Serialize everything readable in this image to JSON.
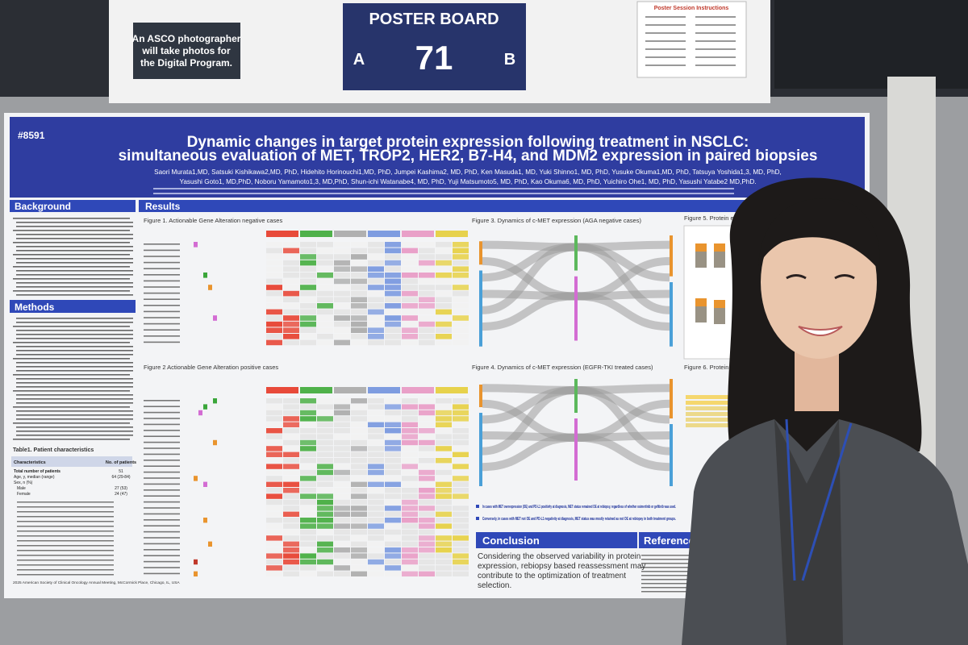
{
  "signs": {
    "photographer": [
      "An ASCO photographer",
      "will take photos for",
      "the Digital Program."
    ],
    "board_label": "POSTER BOARD",
    "side_a": "A",
    "board_number": "71",
    "side_b": "B",
    "instructions_title": "Poster Session Instructions"
  },
  "poster": {
    "id": "#8591",
    "title": [
      "Dynamic changes in target protein expression following treatment in NSCLC:",
      "simultaneous evaluation of MET, TROP2, HER2, B7-H4, and MDM2 expression in paired biopsies"
    ],
    "authors": [
      "Saori Murata1,MD, Satsuki Kishikawa2,MD, PhD, Hidehito Horinouchi1,MD, PhD, Jumpei Kashima2, MD, PhD, Ken Masuda1, MD, Yuki Shinno1, MD, PhD, Yusuke Okuma1,MD, PhD, Tatsuya Yoshida1,3, MD, PhD,",
      "Yasushi Goto1, MD,PhD, Noboru Yamamoto1,3, MD,PhD, Shun-ichi Watanabe4, MD, PhD, Yuji Matsumoto5, MD, PhD, Kao Okuma6, MD, PhD, Yuichiro Ohe1, MD, PhD, Yasushi Yatabe2 MD,PhD."
    ],
    "sections": {
      "background": "Background",
      "methods": "Methods",
      "results": "Results",
      "conclusion": "Conclusion",
      "reference": "Reference"
    },
    "figures": {
      "fig1": "Figure 1. Actionable Gene Alteration negative cases",
      "fig2": "Figure 2 Actionable Gene Alteration positive cases",
      "fig3": "Figure 3. Dynamics of c-MET expression (AGA negative cases)",
      "fig4": "Figure 4. Dynamics of c-MET expression (EGFR-TKI treated cases)",
      "fig5": "Figure 5. Protein expression",
      "fig6": "Figure 6. Protein expression",
      "table1": "Table1. Patient characteristics"
    },
    "table1": {
      "header": [
        "Characteristics",
        "No. of patients"
      ],
      "rows": [
        [
          "Total number of patients",
          "51"
        ],
        [
          "Age, y, median (range)",
          "64 (29-84)"
        ],
        [
          "Sex, n (%)",
          ""
        ],
        [
          "Male",
          "27 (53)"
        ],
        [
          "Female",
          "24 (47)"
        ]
      ]
    },
    "findings": [
      "In cases with MET overexpression (OE) and PD-L1 positivity at diagnosis, MET status remained OE at rebiopsy, regardless of whether osimertinib or gefitinib was used.",
      "Conversely, in cases with MET not OE and PD-L1 negativity at diagnosis, MET status was mostly retained as not OE at rebiopsy in both treatment groups."
    ],
    "conclusion_text": [
      "Considering the observed variability in protein",
      "expression, rebiopsy based reassessment may",
      "contribute to the optimization of treatment",
      "selection."
    ],
    "footer": "2025 American Society of Clinical Oncology Annual Meeting, McCormick Place, Chicago, IL, USA"
  }
}
